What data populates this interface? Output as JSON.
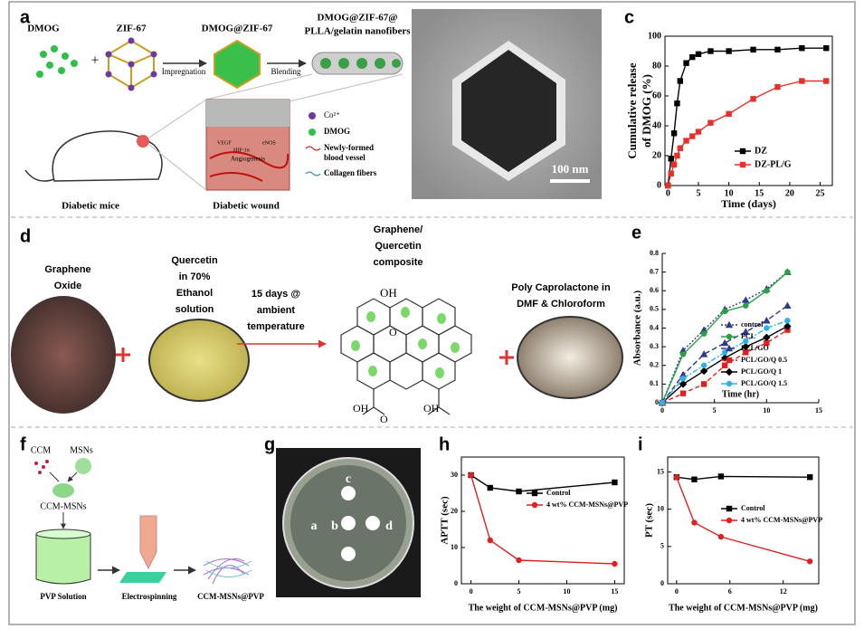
{
  "panels": {
    "letters": [
      "a",
      "b",
      "c",
      "d",
      "e",
      "f",
      "g",
      "h",
      "i"
    ],
    "a": {
      "dmog": "DMOG",
      "zif": "ZIF-67",
      "dmog_zif": "DMOG@ZIF-67",
      "fiber": [
        "DMOG@ZIF-67@",
        "PLLA/gelatin nanofibers"
      ],
      "impregnation": "Impregnation",
      "blending": "Blending",
      "legend": [
        "Co²⁺",
        "DMOG",
        "Newly-formed",
        "blood vessel",
        "Collagen fibers"
      ],
      "mice": "Diabetic mice",
      "wound": "Diabetic wound",
      "inset": [
        "VEGF",
        "HIF-1α",
        "eNOS",
        "Angiogenesis"
      ]
    },
    "b": {
      "scale": "100 nm"
    },
    "d": {
      "go": [
        "Graphene",
        "Oxide"
      ],
      "quercetin": [
        "Quercetin",
        "in 70%",
        "Ethanol",
        "solution"
      ],
      "arrow": [
        "15 days @",
        "ambient",
        "temperature"
      ],
      "composite": [
        "Graphene/",
        "Quercetin",
        "composite"
      ],
      "pcl": [
        "Poly Caprolactone in",
        "DMF & Chloroform"
      ],
      "chem": [
        "OH",
        "O",
        "OH",
        "OH",
        "O"
      ]
    },
    "f": {
      "ccm": "CCM",
      "msns": "MSNs",
      "ccm_msns": "CCM-MSNs",
      "pvp": "PVP Solution",
      "electro": "Electrospinning",
      "product": "CCM-MSNs@PVP"
    },
    "g": {
      "wells": [
        "a",
        "b",
        "c",
        "d"
      ]
    }
  },
  "chart_data": [
    {
      "type": "line",
      "xlabel": "Time (days)",
      "ylabel": [
        "Cumulative release",
        "of DMOG (%)"
      ],
      "x": [
        0,
        0.5,
        1,
        1.5,
        2,
        3,
        4,
        5,
        7,
        10,
        14,
        18,
        22,
        26
      ],
      "xlim": [
        -0.5,
        27
      ],
      "xticks": [
        0,
        5,
        10,
        15,
        20,
        25
      ],
      "ylim": [
        0,
        100
      ],
      "yticks": [
        0,
        20,
        40,
        60,
        80,
        100
      ],
      "legend": "lower right",
      "series": [
        {
          "name": "DZ",
          "color": "#000000",
          "marker": "square",
          "values": [
            0,
            18,
            35,
            55,
            70,
            82,
            86,
            88,
            90,
            90,
            91,
            91,
            92,
            92
          ]
        },
        {
          "name": "DZ-PL/G",
          "color": "#e8302a",
          "marker": "square",
          "values": [
            0,
            8,
            14,
            20,
            25,
            30,
            33,
            36,
            42,
            48,
            58,
            66,
            70,
            70
          ]
        }
      ]
    },
    {
      "type": "line",
      "xlabel": "Time (hr)",
      "ylabel": [
        "Absorbance (a.u.)"
      ],
      "x": [
        0,
        2,
        4,
        6,
        8,
        10,
        12
      ],
      "xlim": [
        0,
        15
      ],
      "xticks": [
        0,
        5,
        10,
        15
      ],
      "ylim": [
        0,
        0.8
      ],
      "yticks": [
        0,
        0.1,
        0.2,
        0.3,
        0.4,
        0.5,
        0.6,
        0.7,
        0.8
      ],
      "legend": "lower right",
      "series": [
        {
          "name": "control",
          "color": "#2b3a8c",
          "marker": "triangle",
          "dash": "2,2",
          "values": [
            0,
            0.28,
            0.39,
            0.5,
            0.55,
            0.61,
            0.7
          ]
        },
        {
          "name": "PCL",
          "color": "#2aa040",
          "marker": "circle",
          "values": [
            0,
            0.26,
            0.37,
            0.49,
            0.52,
            0.6,
            0.7
          ]
        },
        {
          "name": "PCL/GO",
          "color": "#2b3a8c",
          "marker": "triangle",
          "dash": "6,3",
          "values": [
            0,
            0.15,
            0.26,
            0.32,
            0.38,
            0.44,
            0.52
          ]
        },
        {
          "name": "PCL/GO/Q 0.5",
          "color": "#e02020",
          "marker": "square",
          "dash": "5,3",
          "values": [
            0,
            0.05,
            0.1,
            0.2,
            0.27,
            0.32,
            0.39
          ]
        },
        {
          "name": "PCL/GO/Q 1",
          "color": "#000000",
          "marker": "diamond",
          "values": [
            0,
            0.1,
            0.17,
            0.24,
            0.3,
            0.35,
            0.41
          ]
        },
        {
          "name": "PCL/GO/Q 1.5",
          "color": "#30b0e8",
          "marker": "circle",
          "dash": "6,2,2,2",
          "values": [
            0,
            0.13,
            0.2,
            0.27,
            0.33,
            0.4,
            0.44
          ]
        }
      ]
    },
    {
      "type": "line",
      "xlabel": "The weight of CCM-MSNs@PVP (mg)",
      "ylabel": [
        "APTT (sec)"
      ],
      "x": [
        0,
        2,
        5,
        15
      ],
      "xlim": [
        -1,
        16
      ],
      "xticks": [
        0,
        5,
        10,
        15
      ],
      "ylim": [
        0,
        35
      ],
      "yticks": [
        0,
        10,
        20,
        30
      ],
      "legend": "upper right",
      "series": [
        {
          "name": "Control",
          "color": "#000000",
          "marker": "square",
          "values": [
            30,
            26.5,
            25.5,
            28
          ]
        },
        {
          "name": "4 wt% CCM-MSNs@PVP",
          "color": "#e02020",
          "marker": "circle",
          "values": [
            30,
            12,
            6.5,
            5.5
          ]
        }
      ]
    },
    {
      "type": "line",
      "xlabel": "The weight of CCM-MSNs@PVP (mg)",
      "ylabel": [
        "PT (sec)"
      ],
      "x": [
        0,
        2,
        5,
        15
      ],
      "xlim": [
        -1,
        16
      ],
      "xticks": [
        0,
        6,
        12
      ],
      "ylim": [
        0,
        17
      ],
      "yticks": [
        0,
        5,
        10,
        15
      ],
      "legend": "center right",
      "series": [
        {
          "name": "Control",
          "color": "#000000",
          "marker": "square",
          "values": [
            14.3,
            14,
            14.4,
            14.3
          ]
        },
        {
          "name": "4 wt% CCM-MSNs@PVP",
          "color": "#e02020",
          "marker": "circle",
          "values": [
            14.3,
            8.2,
            6.3,
            3
          ]
        }
      ]
    }
  ]
}
